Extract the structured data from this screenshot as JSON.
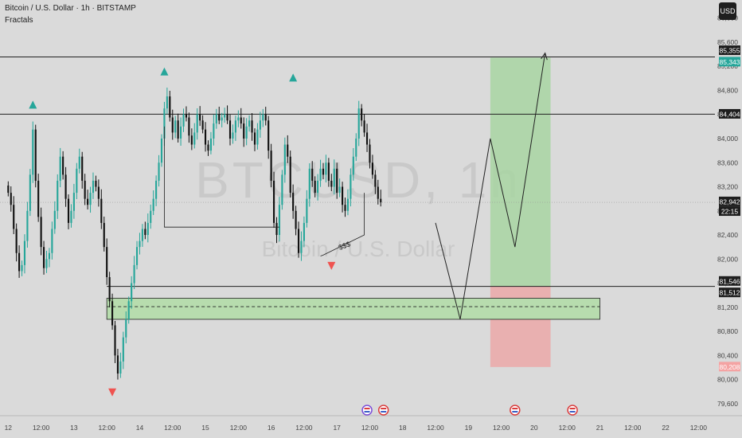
{
  "header": {
    "title": "Bitcoin / U.S. Dollar · 1h · BITSTAMP",
    "indicator": "Fractals",
    "currency_button": "USD"
  },
  "watermark": {
    "symbol": "BTCUSD, 1h",
    "name": "Bitcoin / U.S. Dollar"
  },
  "colors": {
    "background": "#dadada",
    "up_candle": "#26a69a",
    "down_candle": "#111111",
    "fractal_up": "#26a69a",
    "fractal_down": "#ef5350",
    "profit_zone": "#a8d5a2",
    "loss_zone": "#eba8a8",
    "demand_zone": "#b7dcae",
    "line": "#222222"
  },
  "chart_data": {
    "type": "candlestick",
    "title": "Bitcoin / U.S. Dollar · 1h · BITSTAMP",
    "ylim": [
      79400,
      86300
    ],
    "y_ticks": [
      79600,
      80000,
      80400,
      80800,
      81200,
      81600,
      82000,
      82400,
      82800,
      83200,
      83600,
      84000,
      84400,
      84800,
      85200,
      85600,
      86000
    ],
    "y_tick_labels": [
      "79,600",
      "80,000",
      "80,400",
      "80,800",
      "81,200",
      "81,600",
      "82,000",
      "82,400",
      "82,800",
      "83,200",
      "83,600",
      "84,000",
      "84,400",
      "84,800",
      "85,200",
      "85,600",
      "86,000"
    ],
    "x_tick_labels": [
      "12",
      "12:00",
      "13",
      "12:00",
      "14",
      "12:00",
      "15",
      "12:00",
      "16",
      "12:00",
      "17",
      "12:00",
      "18",
      "12:00",
      "19",
      "12:00",
      "20",
      "12:00",
      "21",
      "12:00",
      "22",
      "12:00"
    ],
    "x_ticks_hours": [
      0,
      12,
      24,
      36,
      48,
      60,
      72,
      84,
      96,
      108,
      120,
      132,
      144,
      156,
      168,
      180,
      192,
      204,
      216,
      228,
      240,
      252
    ],
    "x_hours_range": [
      -3,
      258
    ],
    "closes": [
      83100,
      82900,
      82500,
      82100,
      81800,
      81900,
      82300,
      82800,
      83400,
      84150,
      83300,
      82700,
      82200,
      81850,
      82000,
      82100,
      82500,
      82800,
      83300,
      83700,
      83400,
      83000,
      82600,
      82800,
      83100,
      83500,
      83700,
      83300,
      83000,
      82900,
      83100,
      83300,
      83200,
      83000,
      82600,
      82200,
      81700,
      81300,
      80900,
      80400,
      80100,
      80300,
      80700,
      81000,
      81300,
      81600,
      81900,
      82200,
      82300,
      82500,
      82400,
      82600,
      82800,
      83000,
      83300,
      83600,
      84000,
      84500,
      84700,
      84350,
      84100,
      84300,
      84000,
      84200,
      84400,
      84350,
      84050,
      83900,
      84100,
      84400,
      84300,
      84150,
      83900,
      83800,
      84000,
      84250,
      84400,
      84300,
      84350,
      84400,
      84300,
      84000,
      84100,
      84300,
      84350,
      84250,
      84000,
      84200,
      84300,
      84100,
      83900,
      84150,
      84300,
      84400,
      84300,
      83800,
      83300,
      82600,
      82400,
      82900,
      83400,
      83900,
      83700,
      83100,
      82800,
      82500,
      82100,
      82300,
      82600,
      83000,
      83500,
      83300,
      83100,
      83300,
      83500,
      83400,
      83600,
      83300,
      83200,
      83500,
      83100,
      83200,
      82900,
      82800,
      83000,
      83400,
      83700,
      84000,
      84500,
      84300,
      84100,
      83900,
      83600,
      83400,
      83200,
      83000,
      82942
    ],
    "annotations": {
      "horizontal_levels": [
        85355,
        84404,
        81546
      ],
      "fractals_up": [
        {
          "hour": 9,
          "price": 84550
        },
        {
          "hour": 57,
          "price": 85100
        },
        {
          "hour": 104,
          "price": 85000
        }
      ],
      "fractals_down": [
        {
          "hour": 38,
          "price": 79800
        },
        {
          "hour": 118,
          "price": 81900
        }
      ],
      "liquidity_label": "$$$",
      "position": {
        "entry": 81546,
        "target": 85343,
        "stop": 80208
      },
      "demand_zone": [
        81000,
        81350,
        81210
      ],
      "projected_path": [
        [
          156,
          82600
        ],
        [
          165,
          81000
        ],
        [
          176,
          84000
        ],
        [
          185,
          82200
        ],
        [
          196,
          85420
        ]
      ],
      "box_a": [
        {
          "hour": 57,
          "price": 82530
        },
        {
          "hour": 99,
          "price": 82530
        }
      ],
      "box_b": [
        {
          "hour": 114,
          "price": 82050
        },
        {
          "hour": 130,
          "price": 82400
        }
      ]
    },
    "price_labels": [
      {
        "text": "85,355",
        "price": 85460,
        "style": "dark"
      },
      {
        "text": "85,343",
        "price": 85270,
        "style": "green"
      },
      {
        "text": "84,404",
        "price": 84404,
        "style": "dark"
      },
      {
        "text": "82,942",
        "price": 82950,
        "style": "dark"
      },
      {
        "text": "22:15",
        "price": 82790,
        "style": "dark"
      },
      {
        "text": "81,546",
        "price": 81630,
        "style": "dark"
      },
      {
        "text": "81,512",
        "price": 81440,
        "style": "dark"
      },
      {
        "text": "80,208",
        "price": 80208,
        "style": "red"
      }
    ]
  }
}
